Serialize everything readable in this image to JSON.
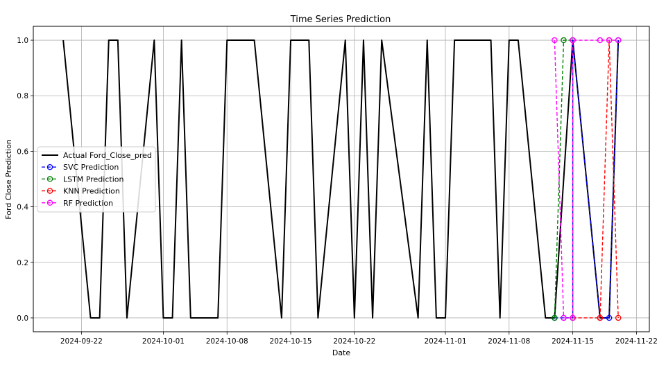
{
  "chart_data": {
    "type": "line",
    "title": "Time Series Prediction",
    "xlabel": "Date",
    "ylabel": "Ford Close Prediction",
    "x_ticks": [
      "2024-09-22",
      "2024-10-01",
      "2024-10-08",
      "2024-10-15",
      "2024-10-22",
      "2024-11-01",
      "2024-11-08",
      "2024-11-15",
      "2024-11-22"
    ],
    "xlim": [
      "2024-09-16T17:00",
      "2024-11-23T10:00"
    ],
    "y_ticks": [
      0.0,
      0.2,
      0.4,
      0.6,
      0.8,
      1.0
    ],
    "y_tick_labels": [
      "0.0",
      "0.2",
      "0.4",
      "0.6",
      "0.8",
      "1.0"
    ],
    "ylim": [
      -0.05,
      1.05
    ],
    "grid": true,
    "legend_position": "center-left",
    "series": [
      {
        "name": "Actual Ford_Close_pred",
        "color": "#000000",
        "style": "solid",
        "markers": false,
        "points": [
          [
            "2024-09-20",
            1
          ],
          [
            "2024-09-23",
            0
          ],
          [
            "2024-09-24",
            0
          ],
          [
            "2024-09-25",
            1
          ],
          [
            "2024-09-26",
            1
          ],
          [
            "2024-09-27",
            0
          ],
          [
            "2024-09-30",
            1
          ],
          [
            "2024-10-01",
            0
          ],
          [
            "2024-10-02",
            0
          ],
          [
            "2024-10-03",
            1
          ],
          [
            "2024-10-04",
            0
          ],
          [
            "2024-10-07",
            0
          ],
          [
            "2024-10-08",
            1
          ],
          [
            "2024-10-11",
            1
          ],
          [
            "2024-10-14",
            0
          ],
          [
            "2024-10-15",
            1
          ],
          [
            "2024-10-17",
            1
          ],
          [
            "2024-10-18",
            0
          ],
          [
            "2024-10-21",
            1
          ],
          [
            "2024-10-22",
            0
          ],
          [
            "2024-10-23",
            1
          ],
          [
            "2024-10-24",
            0
          ],
          [
            "2024-10-25",
            1
          ],
          [
            "2024-10-29",
            0
          ],
          [
            "2024-10-30",
            1
          ],
          [
            "2024-10-31",
            0
          ],
          [
            "2024-11-01",
            0
          ],
          [
            "2024-11-02",
            1
          ],
          [
            "2024-11-06",
            1
          ],
          [
            "2024-11-07",
            0
          ],
          [
            "2024-11-08",
            1
          ],
          [
            "2024-11-09",
            1
          ],
          [
            "2024-11-12",
            0
          ],
          [
            "2024-11-13",
            0
          ],
          [
            "2024-11-15",
            1
          ],
          [
            "2024-11-18",
            0
          ],
          [
            "2024-11-19",
            0
          ],
          [
            "2024-11-20",
            1
          ]
        ]
      },
      {
        "name": "SVC Prediction",
        "color": "#0000ff",
        "style": "dashed",
        "markers": true,
        "points": [
          [
            "2024-11-13",
            0
          ],
          [
            "2024-11-14",
            0
          ],
          [
            "2024-11-15",
            0
          ],
          [
            "2024-11-15",
            1
          ],
          [
            "2024-11-18",
            0
          ],
          [
            "2024-11-19",
            0
          ],
          [
            "2024-11-20",
            1
          ]
        ]
      },
      {
        "name": "LSTM Prediction",
        "color": "#008000",
        "style": "dashed",
        "markers": true,
        "points": [
          [
            "2024-11-13",
            0
          ],
          [
            "2024-11-14",
            1
          ],
          [
            "2024-11-15",
            1
          ],
          [
            "2024-11-15",
            0
          ]
        ]
      },
      {
        "name": "KNN Prediction",
        "color": "#ff0000",
        "style": "dashed",
        "markers": true,
        "points": [
          [
            "2024-11-15",
            0
          ],
          [
            "2024-11-18",
            0
          ],
          [
            "2024-11-19",
            1
          ],
          [
            "2024-11-20",
            0
          ]
        ]
      },
      {
        "name": "RF Prediction",
        "color": "#ff00ff",
        "style": "dashed",
        "markers": true,
        "points": [
          [
            "2024-11-13",
            1
          ],
          [
            "2024-11-14",
            0
          ],
          [
            "2024-11-15",
            0
          ],
          [
            "2024-11-15",
            1
          ],
          [
            "2024-11-18",
            1
          ],
          [
            "2024-11-19",
            1
          ],
          [
            "2024-11-20",
            1
          ]
        ]
      }
    ]
  }
}
